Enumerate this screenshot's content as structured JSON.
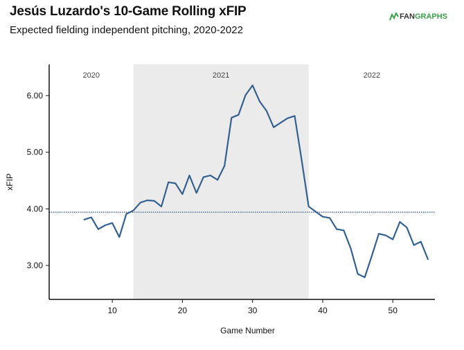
{
  "header": {
    "title": "Jesús Luzardo's 10-Game Rolling xFIP",
    "subtitle": "Expected fielding independent pitching, 2020-2022"
  },
  "logo": {
    "text_left": "FAN",
    "text_right": "GRAPHS",
    "icon": "fangraphs-logo-icon",
    "accent_color": "#3aa14a"
  },
  "colors": {
    "line": "#34608f",
    "reference_line": "#34608f",
    "shade": "#ebebeb",
    "axis": "#111111"
  },
  "chart_data": {
    "type": "line",
    "title": "Jesús Luzardo's 10-Game Rolling xFIP",
    "subtitle": "Expected fielding independent pitching, 2020-2022",
    "xlabel": "Game Number",
    "ylabel": "xFIP",
    "xlim": [
      1,
      56
    ],
    "ylim": [
      2.4,
      6.55
    ],
    "xticks": [
      10,
      20,
      30,
      40,
      50
    ],
    "yticks": [
      3.0,
      4.0,
      5.0,
      6.0
    ],
    "ytick_labels": [
      "3.00",
      "4.00",
      "5.00",
      "6.00"
    ],
    "grid": false,
    "reference_line": {
      "y": 3.94,
      "style": "dotted"
    },
    "season_bands": [
      {
        "label": "2020",
        "start": 1,
        "end": 13,
        "shaded": false
      },
      {
        "label": "2021",
        "start": 13,
        "end": 38,
        "shaded": true
      },
      {
        "label": "2022",
        "start": 38,
        "end": 56,
        "shaded": false
      }
    ],
    "series": [
      {
        "x": [
          6,
          7,
          8,
          9,
          10,
          11,
          12,
          13,
          14,
          15,
          16,
          17,
          18,
          19,
          20,
          21,
          22,
          23,
          24,
          25,
          26,
          27,
          28,
          29,
          30,
          31,
          32,
          33,
          34,
          35,
          36,
          37,
          38,
          39,
          40,
          41,
          42,
          43,
          44,
          45,
          46,
          47,
          48,
          49,
          50,
          51,
          52,
          53,
          54,
          55
        ],
        "y": [
          3.81,
          3.85,
          3.64,
          3.71,
          3.75,
          3.5,
          3.91,
          3.97,
          4.11,
          4.15,
          4.14,
          4.04,
          4.47,
          4.45,
          4.26,
          4.59,
          4.28,
          4.56,
          4.59,
          4.51,
          4.76,
          5.61,
          5.66,
          6.01,
          6.18,
          5.9,
          5.73,
          5.44,
          5.52,
          5.6,
          5.64,
          4.86,
          4.04,
          3.95,
          3.86,
          3.84,
          3.64,
          3.62,
          3.3,
          2.85,
          2.79,
          3.17,
          3.56,
          3.53,
          3.46,
          3.77,
          3.67,
          3.36,
          3.42,
          3.11
        ]
      }
    ]
  }
}
